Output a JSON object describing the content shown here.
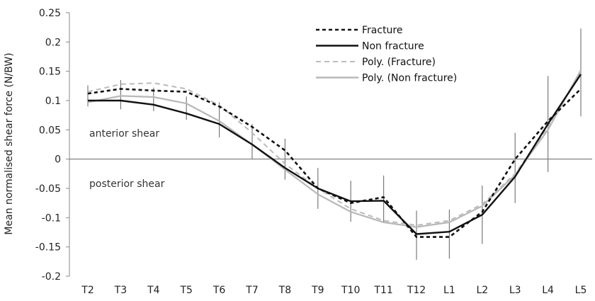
{
  "chart_data": {
    "type": "line",
    "title": "",
    "xlabel": "",
    "ylabel": "Mean normalised shear force (N/BW)",
    "categories": [
      "T2",
      "T3",
      "T4",
      "T5",
      "T6",
      "T7",
      "T8",
      "T9",
      "T10",
      "T11",
      "T12",
      "L1",
      "L2",
      "L3",
      "L4",
      "L5"
    ],
    "yticks": [
      "0.25",
      "0.2",
      "0.15",
      "0.1",
      "0.05",
      "0",
      "-0.05",
      "-0.1",
      "-0.15",
      "-0.2"
    ],
    "ylim": [
      -0.2,
      0.25
    ],
    "grid": false,
    "legend_position": "top-right",
    "annotations": {
      "anterior": "anterior shear",
      "posterior": "posterior shear"
    },
    "series": [
      {
        "name": "Fracture",
        "color": "#111111",
        "style": "dotted",
        "values": [
          0.112,
          0.12,
          0.117,
          0.115,
          0.09,
          0.055,
          0.015,
          -0.05,
          -0.075,
          -0.065,
          -0.133,
          -0.133,
          -0.09,
          0.0,
          0.065,
          0.12
        ]
      },
      {
        "name": "Non fracture",
        "color": "#111111",
        "style": "solid",
        "values": [
          0.1,
          0.1,
          0.093,
          0.078,
          0.06,
          0.025,
          -0.015,
          -0.05,
          -0.072,
          -0.071,
          -0.128,
          -0.124,
          -0.095,
          -0.03,
          0.06,
          0.145
        ]
      },
      {
        "name": "Poly. (Fracture)",
        "color": "#bbbbbb",
        "style": "dashed",
        "values": [
          0.115,
          0.128,
          0.13,
          0.12,
          0.092,
          0.045,
          -0.008,
          -0.05,
          -0.085,
          -0.105,
          -0.113,
          -0.105,
          -0.077,
          -0.025,
          0.055,
          0.148
        ]
      },
      {
        "name": "Poly. (Non fracture)",
        "color": "#b8b8b8",
        "style": "solid",
        "values": [
          0.097,
          0.108,
          0.106,
          0.095,
          0.065,
          0.025,
          -0.018,
          -0.06,
          -0.09,
          -0.108,
          -0.116,
          -0.108,
          -0.08,
          -0.027,
          0.05,
          0.152
        ]
      }
    ],
    "error_bars": {
      "color": "#7a7a7a",
      "center": [
        0.108,
        0.11,
        0.102,
        0.087,
        0.067,
        0.03,
        0.0,
        -0.05,
        -0.072,
        -0.068,
        -0.13,
        -0.128,
        -0.095,
        -0.015,
        0.06,
        0.148
      ],
      "half_range": [
        0.018,
        0.025,
        0.02,
        0.02,
        0.03,
        0.03,
        0.035,
        0.035,
        0.035,
        0.04,
        0.042,
        0.042,
        0.05,
        0.06,
        0.082,
        0.075
      ]
    }
  }
}
